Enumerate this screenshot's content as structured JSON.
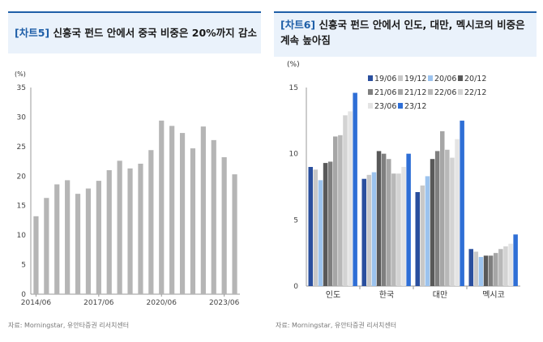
{
  "left_panel": {
    "tag": "[차트5]",
    "title": "신흥국 펀드 안에서 중국 비중은 20%까지 감소",
    "source": "자료: Morningstar, 유안타증권 리서치센터"
  },
  "right_panel": {
    "tag": "[차트6]",
    "title_line1": "신흥국 펀드 안에서 인도, 대만, 멕시코의 비중은",
    "title_line2": "계속 높아짐",
    "source": "자료: Morningstar, 유안타증권 리서치센터"
  },
  "colors": {
    "title_bg": "#eaf2fb",
    "accent": "#1f5fa8",
    "left_bar": "#b5b5b5"
  },
  "chart_data": [
    {
      "type": "bar",
      "title": "신흥국 펀드 안에서 중국 비중은 20%까지 감소",
      "ylabel": "(%)",
      "ylim": [
        0,
        35
      ],
      "yticks": [
        0,
        5,
        10,
        15,
        20,
        25,
        30,
        35
      ],
      "xtick_labels": [
        "2014/06",
        "2017/06",
        "2020/06",
        "2023/06"
      ],
      "xtick_index": [
        0,
        6,
        12,
        18
      ],
      "categories": [
        "2014/06",
        "2014/12",
        "2015/06",
        "2015/12",
        "2016/06",
        "2016/12",
        "2017/06",
        "2017/12",
        "2018/06",
        "2018/12",
        "2019/06",
        "2019/12",
        "2020/06",
        "2020/12",
        "2021/06",
        "2021/12",
        "2022/06",
        "2022/12",
        "2023/06",
        "2023/12"
      ],
      "values": [
        13.2,
        16.3,
        18.6,
        19.3,
        17.0,
        17.9,
        19.2,
        21.0,
        22.6,
        21.3,
        22.1,
        24.4,
        29.4,
        28.5,
        27.3,
        24.7,
        28.4,
        26.1,
        23.2,
        20.3
      ]
    },
    {
      "type": "bar",
      "title": "신흥국 펀드 안에서 인도, 대만, 멕시코의 비중은 계속 높아짐",
      "ylabel": "(%)",
      "ylim": [
        0,
        15
      ],
      "yticks": [
        0,
        5,
        10,
        15
      ],
      "categories": [
        "인도",
        "한국",
        "대만",
        "멕시코"
      ],
      "series": [
        {
          "name": "19/06",
          "color": "#2a4f9e",
          "values": [
            9.0,
            8.1,
            7.1,
            2.8
          ]
        },
        {
          "name": "19/12",
          "color": "#c8c8c8",
          "values": [
            8.8,
            8.4,
            7.6,
            2.6
          ]
        },
        {
          "name": "20/06",
          "color": "#9cc3ee",
          "values": [
            8.0,
            8.6,
            8.3,
            2.2
          ]
        },
        {
          "name": "20/12",
          "color": "#595959",
          "values": [
            9.3,
            10.2,
            9.6,
            2.3
          ]
        },
        {
          "name": "21/06",
          "color": "#7f7f7f",
          "values": [
            9.4,
            10.0,
            10.2,
            2.3
          ]
        },
        {
          "name": "21/12",
          "color": "#a6a6a6",
          "values": [
            11.3,
            9.6,
            11.7,
            2.5
          ]
        },
        {
          "name": "22/06",
          "color": "#b8b8b8",
          "values": [
            11.4,
            8.5,
            10.3,
            2.8
          ]
        },
        {
          "name": "22/12",
          "color": "#d3d3d3",
          "values": [
            12.9,
            8.5,
            9.7,
            3.0
          ]
        },
        {
          "name": "23/06",
          "color": "#e4e4e4",
          "values": [
            13.2,
            9.0,
            11.1,
            3.2
          ]
        },
        {
          "name": "23/12",
          "color": "#2f6fd6",
          "values": [
            14.6,
            10.0,
            12.5,
            3.9
          ]
        }
      ]
    }
  ]
}
